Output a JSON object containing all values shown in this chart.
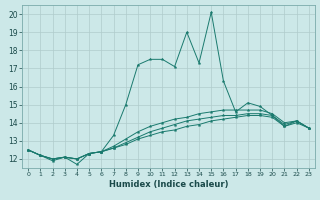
{
  "xlabel": "Humidex (Indice chaleur)",
  "x_ticks": [
    0,
    1,
    2,
    3,
    4,
    5,
    6,
    7,
    8,
    9,
    10,
    11,
    12,
    13,
    14,
    15,
    16,
    17,
    18,
    19,
    20,
    21,
    22,
    23
  ],
  "ylim": [
    11.5,
    20.5
  ],
  "xlim": [
    -0.5,
    23.5
  ],
  "y_ticks": [
    12,
    13,
    14,
    15,
    16,
    17,
    18,
    19,
    20
  ],
  "bg_color": "#cce8e8",
  "grid_color": "#b0cccc",
  "line_color": "#1a7a6e",
  "series": [
    [
      12.5,
      12.2,
      11.9,
      12.1,
      11.7,
      12.3,
      12.4,
      13.3,
      15.0,
      17.2,
      17.5,
      17.5,
      17.1,
      19.0,
      17.3,
      20.1,
      16.3,
      14.6,
      15.1,
      14.9,
      14.4,
      13.8,
      14.1,
      13.7
    ],
    [
      12.5,
      12.2,
      12.0,
      12.1,
      12.0,
      12.3,
      12.4,
      12.6,
      12.8,
      13.1,
      13.3,
      13.5,
      13.6,
      13.8,
      13.9,
      14.1,
      14.2,
      14.3,
      14.4,
      14.4,
      14.3,
      13.8,
      14.0,
      13.7
    ],
    [
      12.5,
      12.2,
      12.0,
      12.1,
      12.0,
      12.3,
      12.4,
      12.6,
      12.9,
      13.2,
      13.5,
      13.7,
      13.9,
      14.1,
      14.2,
      14.3,
      14.4,
      14.4,
      14.5,
      14.5,
      14.4,
      13.9,
      14.1,
      13.7
    ],
    [
      12.5,
      12.2,
      12.0,
      12.1,
      12.0,
      12.3,
      12.4,
      12.7,
      13.1,
      13.5,
      13.8,
      14.0,
      14.2,
      14.3,
      14.5,
      14.6,
      14.7,
      14.7,
      14.7,
      14.7,
      14.5,
      14.0,
      14.1,
      13.7
    ]
  ]
}
